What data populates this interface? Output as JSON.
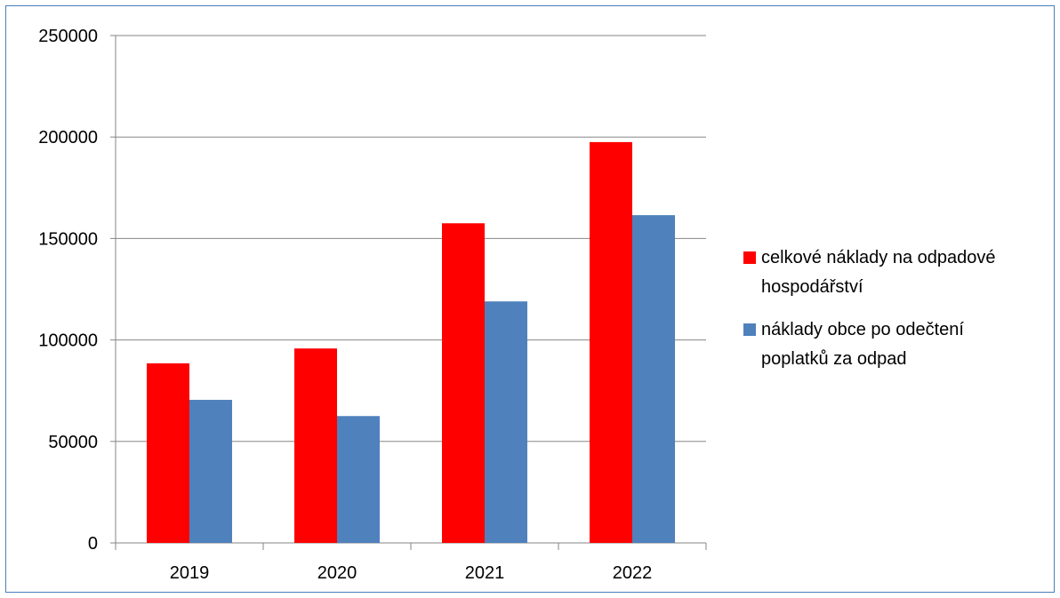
{
  "chart_data": {
    "type": "bar",
    "categories": [
      "2019",
      "2020",
      "2021",
      "2022"
    ],
    "series": [
      {
        "name": "celkové náklady na odpadové hospodářství",
        "name_lines": [
          "celkové náklady na odpadové",
          "hospodářství"
        ],
        "color": "#ff0000",
        "values": [
          88500,
          95800,
          157500,
          197500
        ]
      },
      {
        "name": "náklady obce po odečtení poplatků za odpad",
        "name_lines": [
          "náklady obce po odečtení",
          "poplatků za odpad"
        ],
        "color": "#4f81bd",
        "values": [
          70500,
          62500,
          119000,
          161500
        ]
      }
    ],
    "ylim": [
      0,
      250000
    ],
    "yticks": [
      "0",
      "50000",
      "100000",
      "150000",
      "200000",
      "250000"
    ],
    "grid": true,
    "legend": "right",
    "title": "",
    "xlabel": "",
    "ylabel": ""
  }
}
